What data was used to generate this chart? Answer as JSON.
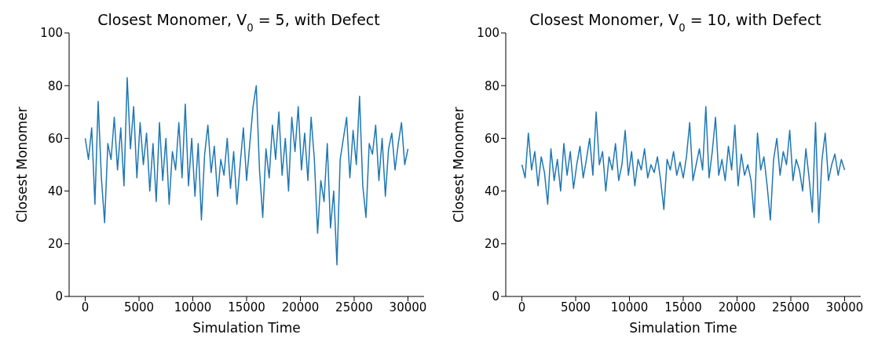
{
  "chart_data": [
    {
      "type": "line",
      "title": "Closest Monomer,  V$_{0}$ = 5, with Defect",
      "xlabel": "Simulation Time",
      "ylabel": "Closest Monomer",
      "x": [
        0,
        300,
        600,
        900,
        1200,
        1500,
        1800,
        2100,
        2400,
        2700,
        3000,
        3300,
        3600,
        3900,
        4200,
        4500,
        4800,
        5100,
        5400,
        5700,
        6000,
        6300,
        6600,
        6900,
        7200,
        7500,
        7800,
        8100,
        8400,
        8700,
        9000,
        9300,
        9600,
        9900,
        10200,
        10500,
        10800,
        11100,
        11400,
        11700,
        12000,
        12300,
        12600,
        12900,
        13200,
        13500,
        13800,
        14100,
        14400,
        14700,
        15000,
        15300,
        15600,
        15900,
        16200,
        16500,
        16800,
        17100,
        17400,
        17700,
        18000,
        18300,
        18600,
        18900,
        19200,
        19500,
        19800,
        20100,
        20400,
        20700,
        21000,
        21300,
        21600,
        21900,
        22200,
        22500,
        22800,
        23100,
        23400,
        23700,
        24000,
        24300,
        24600,
        24900,
        25200,
        25500,
        25800,
        26100,
        26400,
        26700,
        27000,
        27300,
        27600,
        27900,
        28200,
        28500,
        28800,
        29100,
        29400,
        29700,
        30000
      ],
      "series": [
        {
          "color": "#1f77b4",
          "values": [
            60,
            52,
            64,
            35,
            74,
            45,
            28,
            58,
            52,
            68,
            48,
            64,
            42,
            83,
            56,
            72,
            45,
            66,
            50,
            62,
            40,
            58,
            36,
            66,
            44,
            60,
            35,
            55,
            48,
            66,
            45,
            73,
            42,
            60,
            38,
            58,
            29,
            54,
            65,
            47,
            57,
            38,
            52,
            46,
            60,
            41,
            55,
            35,
            50,
            64,
            44,
            58,
            72,
            80,
            48,
            30,
            56,
            45,
            65,
            52,
            70,
            46,
            60,
            40,
            68,
            55,
            72,
            48,
            62,
            44,
            68,
            52,
            24,
            44,
            36,
            58,
            26,
            40,
            12,
            52,
            60,
            68,
            45,
            63,
            50,
            76,
            42,
            30,
            58,
            54,
            65,
            44,
            60,
            38,
            56,
            62,
            48,
            58,
            66,
            50,
            56
          ]
        }
      ],
      "xlim": [
        -1500,
        31500
      ],
      "xticks": [
        0,
        5000,
        10000,
        15000,
        20000,
        25000,
        30000
      ],
      "ylim": [
        0,
        100
      ],
      "yticks": [
        0,
        20,
        40,
        60,
        80,
        100
      ],
      "grid": false,
      "legend": false,
      "marker": "none",
      "line_style": "solid"
    },
    {
      "type": "line",
      "title": "Closest Monomer,  V$_{0}$ = 10, with Defect",
      "xlabel": "Simulation Time",
      "ylabel": "Closest Monomer",
      "x": [
        0,
        300,
        600,
        900,
        1200,
        1500,
        1800,
        2100,
        2400,
        2700,
        3000,
        3300,
        3600,
        3900,
        4200,
        4500,
        4800,
        5100,
        5400,
        5700,
        6000,
        6300,
        6600,
        6900,
        7200,
        7500,
        7800,
        8100,
        8400,
        8700,
        9000,
        9300,
        9600,
        9900,
        10200,
        10500,
        10800,
        11100,
        11400,
        11700,
        12000,
        12300,
        12600,
        12900,
        13200,
        13500,
        13800,
        14100,
        14400,
        14700,
        15000,
        15300,
        15600,
        15900,
        16200,
        16500,
        16800,
        17100,
        17400,
        17700,
        18000,
        18300,
        18600,
        18900,
        19200,
        19500,
        19800,
        20100,
        20400,
        20700,
        21000,
        21300,
        21600,
        21900,
        22200,
        22500,
        22800,
        23100,
        23400,
        23700,
        24000,
        24300,
        24600,
        24900,
        25200,
        25500,
        25800,
        26100,
        26400,
        26700,
        27000,
        27300,
        27600,
        27900,
        28200,
        28500,
        28800,
        29100,
        29400,
        29700,
        30000
      ],
      "series": [
        {
          "color": "#1f77b4",
          "values": [
            50,
            45,
            62,
            48,
            55,
            42,
            53,
            47,
            35,
            56,
            44,
            52,
            40,
            58,
            46,
            55,
            41,
            50,
            57,
            45,
            52,
            60,
            46,
            70,
            50,
            55,
            40,
            53,
            48,
            58,
            44,
            50,
            63,
            46,
            55,
            42,
            52,
            48,
            56,
            45,
            50,
            47,
            53,
            44,
            33,
            52,
            48,
            55,
            46,
            51,
            45,
            53,
            66,
            44,
            50,
            56,
            48,
            72,
            45,
            55,
            68,
            46,
            52,
            44,
            57,
            48,
            65,
            42,
            54,
            46,
            50,
            44,
            30,
            62,
            48,
            53,
            42,
            29,
            52,
            60,
            46,
            55,
            50,
            63,
            44,
            52,
            48,
            40,
            56,
            45,
            32,
            66,
            28,
            52,
            62,
            44,
            50,
            54,
            46,
            52,
            48
          ]
        }
      ],
      "xlim": [
        -1500,
        31500
      ],
      "xticks": [
        0,
        5000,
        10000,
        15000,
        20000,
        25000,
        30000
      ],
      "ylim": [
        0,
        100
      ],
      "yticks": [
        0,
        20,
        40,
        60,
        80,
        100
      ],
      "grid": false,
      "legend": false,
      "marker": "none",
      "line_style": "solid"
    }
  ]
}
